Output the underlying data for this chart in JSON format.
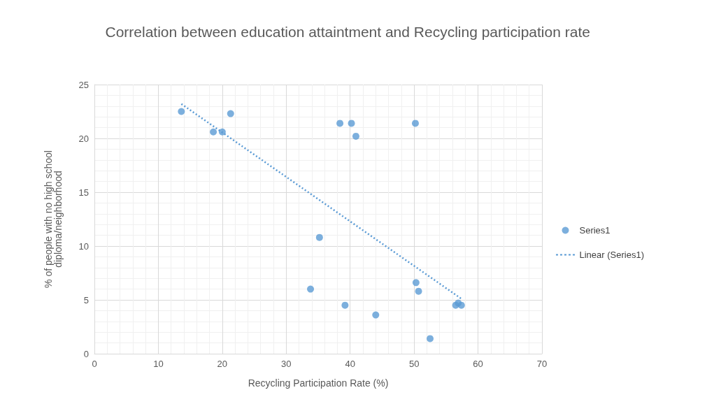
{
  "chart_data": {
    "type": "scatter",
    "title": "Correlation between education attaintment and Recycling participation rate",
    "xlabel": "Recycling Participation Rate (%)",
    "ylabel": "% of people with no high school diploma/neighborhood",
    "xlim": [
      0,
      70
    ],
    "xticks": [
      0,
      10,
      20,
      30,
      40,
      50,
      60,
      70
    ],
    "ylim": [
      0,
      25
    ],
    "yticks": [
      0,
      5,
      10,
      15,
      20,
      25
    ],
    "grid": true,
    "legend": "right",
    "series": [
      {
        "name": "Series1",
        "color": "#5b9bd5",
        "marker": "circle",
        "x": [
          13.6,
          18.6,
          20.0,
          21.3,
          38.4,
          40.2,
          40.9,
          50.2,
          35.2,
          33.8,
          39.2,
          44.0,
          50.3,
          50.7,
          52.5,
          56.5,
          56.9,
          57.4
        ],
        "values": [
          22.5,
          20.6,
          20.6,
          22.3,
          21.4,
          21.4,
          20.2,
          21.4,
          10.8,
          6.0,
          4.5,
          3.6,
          6.6,
          5.8,
          1.4,
          4.5,
          4.7,
          4.5
        ]
      },
      {
        "name": "Linear (Series1)",
        "type": "line",
        "color": "#5b9bd5",
        "marker": "none",
        "line_style": "dotted",
        "x": [
          13.6,
          57.4
        ],
        "values": [
          23.2,
          5.1
        ]
      }
    ]
  }
}
